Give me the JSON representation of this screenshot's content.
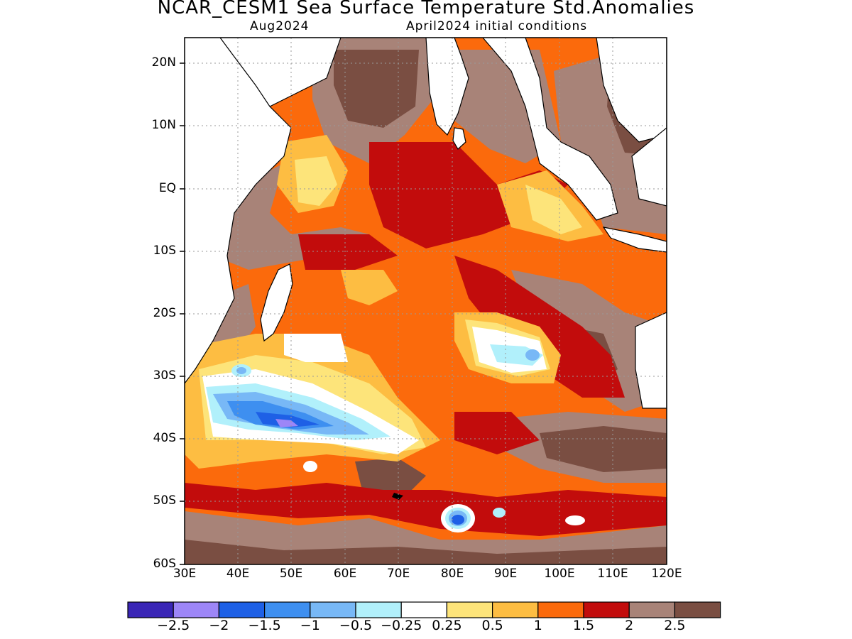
{
  "title": "NCAR_CESM1 Sea Surface Temperature Std.Anomalies",
  "subtitle_left": "Aug2024",
  "subtitle_right": "April2024 initial conditions",
  "lat_labels": [
    "20N",
    "10N",
    "EQ",
    "10S",
    "20S",
    "30S",
    "40S",
    "50S",
    "60S"
  ],
  "lon_labels": [
    "30E",
    "40E",
    "50E",
    "60E",
    "70E",
    "80E",
    "90E",
    "100E",
    "110E",
    "120E"
  ],
  "colorbar": {
    "colors": [
      "#3a26b6",
      "#9d86f7",
      "#1e60e6",
      "#3e8ff0",
      "#78b8f6",
      "#b1f0fb",
      "#ffffff",
      "#fde47a",
      "#fdbd42",
      "#fb6a0c",
      "#c20c0c",
      "#a88378",
      "#7a4e42"
    ],
    "labels": [
      "−2.5",
      "−2",
      "−1.5",
      "−1",
      "−0.5",
      "−0.25",
      "0.25",
      "0.5",
      "1",
      "1.5",
      "2",
      "2.5"
    ]
  },
  "map": {
    "lon_range": [
      30,
      120
    ],
    "lat_range": [
      -60,
      24
    ],
    "grid": "dotted",
    "land_color": "#ffffff"
  }
}
